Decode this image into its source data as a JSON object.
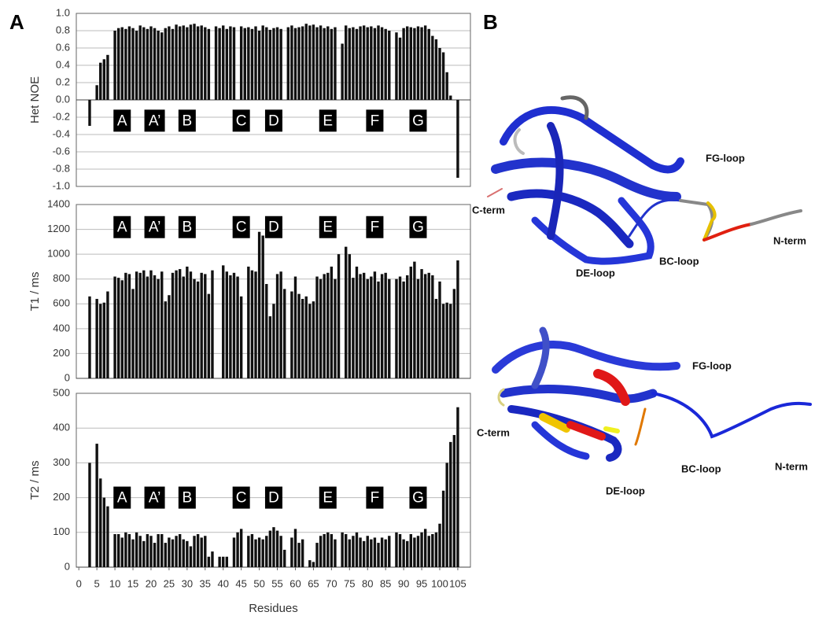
{
  "panel_labels": [
    "A",
    "B"
  ],
  "strands": [
    {
      "text": "A",
      "x": 12
    },
    {
      "text": "A’",
      "x": 21
    },
    {
      "text": "B",
      "x": 30
    },
    {
      "text": "C",
      "x": 45
    },
    {
      "text": "D",
      "x": 54
    },
    {
      "text": "E",
      "x": 69
    },
    {
      "text": "F",
      "x": 82
    },
    {
      "text": "G",
      "x": 94
    }
  ],
  "chart_data": [
    {
      "type": "bar",
      "y_label": "Het NOE",
      "color": "#111111",
      "grid": true,
      "xlim": [
        -0.7,
        108.5
      ],
      "ylim": [
        -1.0,
        1.0
      ],
      "yticks": [
        {
          "value": 1.0,
          "label": "1.0"
        },
        0.8,
        0.6,
        0.4,
        0.2,
        {
          "value": 0.0,
          "label": "0.0"
        },
        -0.2,
        -0.4,
        -0.6,
        -0.8,
        {
          "value": -1.0,
          "label": "-1.0"
        }
      ],
      "x": [
        1,
        2,
        3,
        4,
        5,
        6,
        7,
        8,
        9,
        10,
        11,
        12,
        13,
        14,
        15,
        16,
        17,
        18,
        19,
        20,
        21,
        22,
        23,
        24,
        25,
        26,
        27,
        28,
        29,
        30,
        31,
        32,
        33,
        34,
        35,
        36,
        37,
        38,
        39,
        40,
        41,
        42,
        43,
        44,
        45,
        46,
        47,
        48,
        49,
        50,
        51,
        52,
        53,
        54,
        55,
        56,
        57,
        58,
        59,
        60,
        61,
        62,
        63,
        64,
        65,
        66,
        67,
        68,
        69,
        70,
        71,
        72,
        73,
        74,
        75,
        76,
        77,
        78,
        79,
        80,
        81,
        82,
        83,
        84,
        85,
        86,
        87,
        88,
        89,
        90,
        91,
        92,
        93,
        94,
        95,
        96,
        97,
        98,
        99,
        100,
        101,
        102,
        103,
        104,
        105
      ],
      "values": [
        null,
        null,
        -0.3,
        null,
        0.17,
        0.43,
        0.47,
        0.52,
        null,
        0.8,
        0.83,
        0.84,
        0.82,
        0.85,
        0.83,
        0.8,
        0.86,
        0.84,
        0.82,
        0.85,
        0.83,
        0.8,
        0.78,
        0.83,
        0.85,
        0.82,
        0.87,
        0.85,
        0.86,
        0.84,
        0.87,
        0.88,
        0.85,
        0.86,
        0.84,
        0.82,
        null,
        0.85,
        0.83,
        0.86,
        0.82,
        0.85,
        0.84,
        null,
        0.85,
        0.83,
        0.84,
        0.82,
        0.85,
        0.8,
        0.86,
        0.84,
        0.81,
        0.83,
        0.84,
        0.82,
        null,
        0.84,
        0.86,
        0.83,
        0.84,
        0.85,
        0.88,
        0.86,
        0.87,
        0.84,
        0.86,
        0.83,
        0.85,
        0.82,
        0.84,
        null,
        0.65,
        0.86,
        0.83,
        0.84,
        0.82,
        0.85,
        0.86,
        0.84,
        0.85,
        0.83,
        0.86,
        0.84,
        0.82,
        0.8,
        null,
        0.78,
        0.72,
        0.83,
        0.85,
        0.84,
        0.83,
        0.85,
        0.84,
        0.86,
        0.82,
        0.74,
        0.7,
        0.6,
        0.55,
        0.32,
        0.05,
        null,
        -0.9
      ]
    },
    {
      "type": "bar",
      "y_label": "T1 / ms",
      "color": "#111111",
      "grid": true,
      "xlim": [
        -0.7,
        108.5
      ],
      "ylim": [
        0,
        1400
      ],
      "yticks": [
        0,
        200,
        400,
        600,
        800,
        1000,
        1200,
        1400
      ],
      "x": [
        1,
        2,
        3,
        4,
        5,
        6,
        7,
        8,
        9,
        10,
        11,
        12,
        13,
        14,
        15,
        16,
        17,
        18,
        19,
        20,
        21,
        22,
        23,
        24,
        25,
        26,
        27,
        28,
        29,
        30,
        31,
        32,
        33,
        34,
        35,
        36,
        37,
        38,
        39,
        40,
        41,
        42,
        43,
        44,
        45,
        46,
        47,
        48,
        49,
        50,
        51,
        52,
        53,
        54,
        55,
        56,
        57,
        58,
        59,
        60,
        61,
        62,
        63,
        64,
        65,
        66,
        67,
        68,
        69,
        70,
        71,
        72,
        73,
        74,
        75,
        76,
        77,
        78,
        79,
        80,
        81,
        82,
        83,
        84,
        85,
        86,
        87,
        88,
        89,
        90,
        91,
        92,
        93,
        94,
        95,
        96,
        97,
        98,
        99,
        100,
        101,
        102,
        103,
        104,
        105
      ],
      "values": [
        null,
        null,
        660,
        null,
        640,
        600,
        610,
        700,
        null,
        820,
        810,
        790,
        850,
        840,
        720,
        860,
        850,
        870,
        820,
        870,
        830,
        800,
        860,
        620,
        670,
        850,
        870,
        880,
        820,
        900,
        860,
        800,
        780,
        850,
        840,
        680,
        870,
        null,
        null,
        910,
        860,
        830,
        850,
        820,
        660,
        null,
        900,
        870,
        860,
        1180,
        1150,
        760,
        500,
        600,
        840,
        860,
        720,
        null,
        700,
        820,
        680,
        640,
        660,
        600,
        620,
        820,
        800,
        840,
        850,
        900,
        800,
        1000,
        null,
        1060,
        1000,
        810,
        900,
        840,
        850,
        800,
        820,
        860,
        780,
        840,
        850,
        800,
        null,
        800,
        820,
        780,
        830,
        900,
        940,
        800,
        880,
        840,
        850,
        830,
        640,
        780,
        600,
        610,
        600,
        720,
        950
      ]
    },
    {
      "type": "bar",
      "y_label": "T2 / ms",
      "x_label": "Residues",
      "color": "#111111",
      "grid": true,
      "xlim": [
        -0.7,
        108.5
      ],
      "ylim": [
        0,
        500
      ],
      "yticks": [
        0,
        100,
        200,
        300,
        400,
        500
      ],
      "xticks": [
        0,
        5,
        10,
        15,
        20,
        25,
        30,
        35,
        40,
        45,
        50,
        55,
        60,
        65,
        70,
        75,
        80,
        85,
        90,
        95,
        100,
        105
      ],
      "x": [
        1,
        2,
        3,
        4,
        5,
        6,
        7,
        8,
        9,
        10,
        11,
        12,
        13,
        14,
        15,
        16,
        17,
        18,
        19,
        20,
        21,
        22,
        23,
        24,
        25,
        26,
        27,
        28,
        29,
        30,
        31,
        32,
        33,
        34,
        35,
        36,
        37,
        38,
        39,
        40,
        41,
        42,
        43,
        44,
        45,
        46,
        47,
        48,
        49,
        50,
        51,
        52,
        53,
        54,
        55,
        56,
        57,
        58,
        59,
        60,
        61,
        62,
        63,
        64,
        65,
        66,
        67,
        68,
        69,
        70,
        71,
        72,
        73,
        74,
        75,
        76,
        77,
        78,
        79,
        80,
        81,
        82,
        83,
        84,
        85,
        86,
        87,
        88,
        89,
        90,
        91,
        92,
        93,
        94,
        95,
        96,
        97,
        98,
        99,
        100,
        101,
        102,
        103,
        104,
        105
      ],
      "values": [
        null,
        null,
        300,
        null,
        355,
        255,
        200,
        175,
        null,
        95,
        95,
        85,
        100,
        95,
        80,
        100,
        90,
        75,
        95,
        90,
        70,
        95,
        95,
        70,
        85,
        80,
        90,
        95,
        80,
        75,
        60,
        90,
        95,
        85,
        90,
        30,
        45,
        null,
        30,
        30,
        30,
        null,
        85,
        100,
        110,
        null,
        90,
        95,
        80,
        85,
        80,
        90,
        105,
        115,
        105,
        90,
        50,
        null,
        85,
        110,
        70,
        80,
        null,
        20,
        15,
        70,
        90,
        95,
        100,
        95,
        80,
        null,
        100,
        95,
        80,
        90,
        100,
        85,
        75,
        90,
        80,
        85,
        70,
        85,
        80,
        90,
        null,
        100,
        95,
        80,
        75,
        95,
        85,
        90,
        100,
        110,
        90,
        95,
        100,
        125,
        220,
        300,
        360,
        380,
        460
      ]
    }
  ],
  "structures": [
    {
      "labels": [
        "FG-loop",
        "C-term",
        "N-term",
        "DE-loop",
        "BC-loop"
      ]
    },
    {
      "labels": [
        "FG-loop",
        "C-term",
        "N-term",
        "DE-loop",
        "BC-loop"
      ]
    }
  ]
}
